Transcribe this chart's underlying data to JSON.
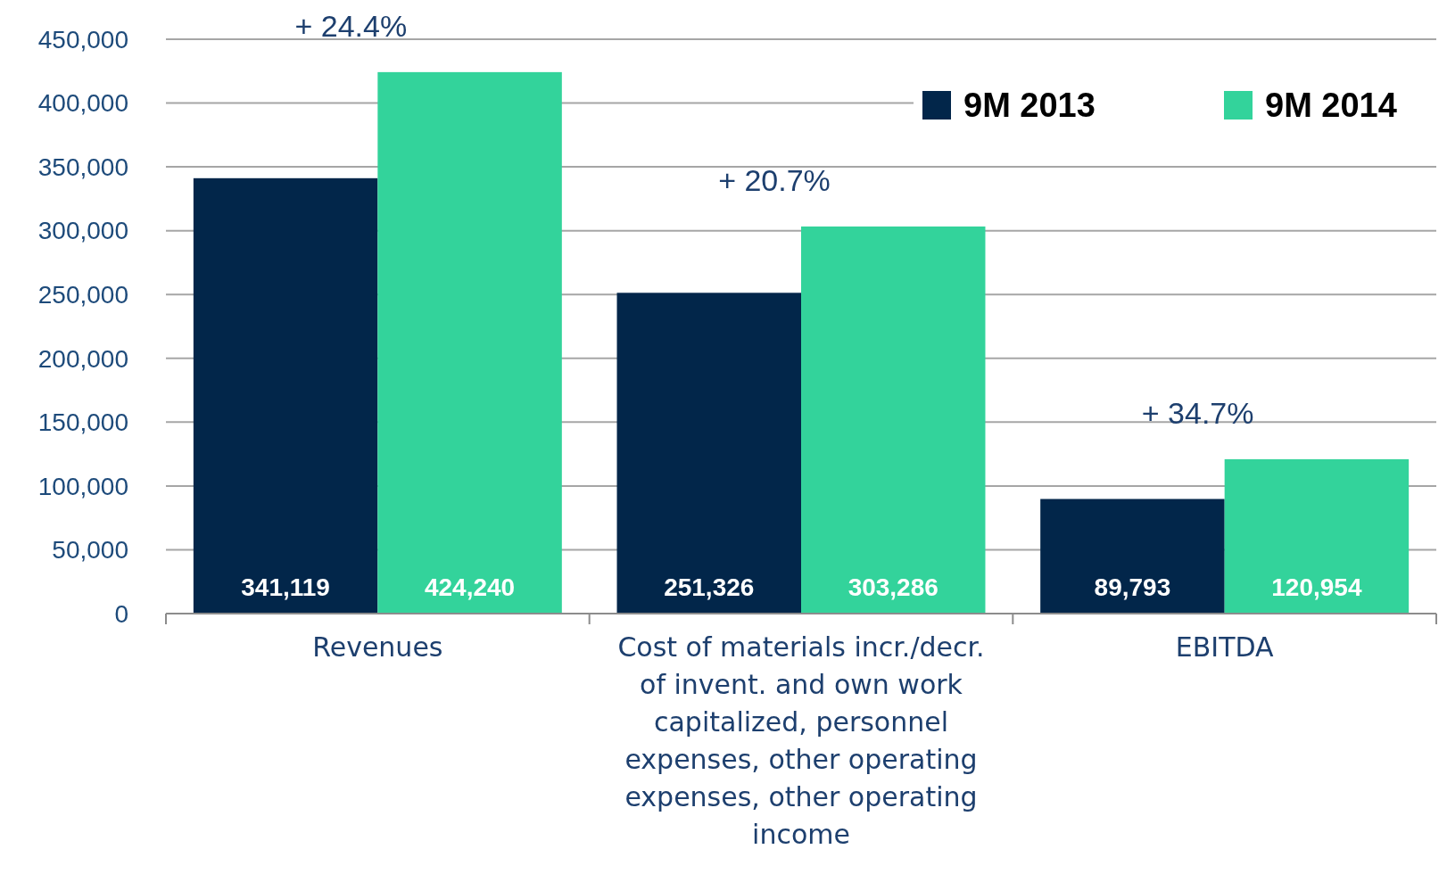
{
  "chart_data": {
    "type": "bar",
    "categories": [
      "Revenues",
      "Cost of materials incr./decr. of invent. and own work capitalized, personnel expenses, other operating expenses, other operating income",
      "EBITDA"
    ],
    "series": [
      {
        "name": "9M 2013",
        "color": "#02264a",
        "values": [
          341119,
          251326,
          89793
        ],
        "value_labels": [
          "341,119",
          "251,326",
          "89,793"
        ]
      },
      {
        "name": "9M 2014",
        "color": "#33d39b",
        "values": [
          424240,
          303286,
          120954
        ],
        "value_labels": [
          "424,240",
          "303,286",
          "120,954"
        ]
      }
    ],
    "ylim": [
      0,
      450000
    ],
    "yticks": [
      {
        "value": 0,
        "label": "0"
      },
      {
        "value": 50000,
        "label": "50,000"
      },
      {
        "value": 100000,
        "label": "100,000"
      },
      {
        "value": 150000,
        "label": "150,000"
      },
      {
        "value": 200000,
        "label": "200,000"
      },
      {
        "value": 250000,
        "label": "250,000"
      },
      {
        "value": 300000,
        "label": "300,000"
      },
      {
        "value": 350000,
        "label": "350,000"
      },
      {
        "value": 400000,
        "label": "400,000"
      },
      {
        "value": 450000,
        "label": "450,000"
      }
    ],
    "grid": "y",
    "legend": "top right",
    "annotations": [
      {
        "text": "+ 24.4%",
        "x": "Revenues",
        "y": 424240
      },
      {
        "text": "+ 20.7%",
        "x": "Cost of materials incr./decr. of invent. and own work capitalized, personnel expenses, other operating expenses, other operating income",
        "y": 303286
      },
      {
        "text": "+ 34.7%",
        "x": "EBITDA",
        "y": 120954
      }
    ]
  }
}
